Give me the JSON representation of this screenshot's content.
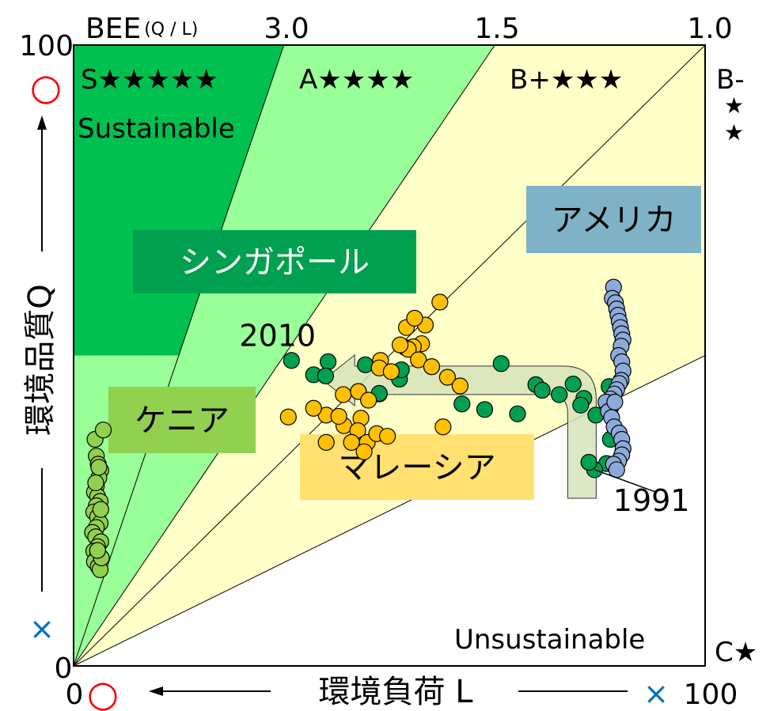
{
  "chart_data": {
    "type": "scatter",
    "title": "",
    "x_axis": {
      "label": "環境負荷 L",
      "range": [
        0,
        100
      ],
      "min_label": "0",
      "max_label": "100",
      "min_symbol": "○",
      "max_symbol": "×"
    },
    "y_axis": {
      "label": "環境品質Q",
      "range": [
        0,
        100
      ],
      "min_label": "0",
      "max_label": "100",
      "min_symbol": "×",
      "max_symbol": "○"
    },
    "bee_axis": {
      "label": "BEE",
      "label_suffix": "(Q / L)",
      "ticks": [
        "3.0",
        "1.5",
        "1.0"
      ]
    },
    "zones": [
      {
        "label": "S★★★★★",
        "note": "Sustainable",
        "color": "#00c050"
      },
      {
        "label": "A★★★★",
        "color": "#99ff99"
      },
      {
        "label": "B+★★★",
        "color": "#ffffc8"
      },
      {
        "label": "B-",
        "stars": [
          "★",
          "★"
        ],
        "color": "#ffffc8"
      },
      {
        "label": "C★",
        "note": "Unsustainable",
        "color": "#ffffff"
      }
    ],
    "series": [
      {
        "name": "シンガポール",
        "color": "#00a050",
        "label_bg": "#00a050",
        "points": [
          [
            84.4,
            32.6
          ],
          [
            82.5,
            31.6
          ],
          [
            81.6,
            32.8
          ],
          [
            85.0,
            36.5
          ],
          [
            85.0,
            41.5
          ],
          [
            84.8,
            45.0
          ],
          [
            79.1,
            45.4
          ],
          [
            80.8,
            43.1
          ],
          [
            84.8,
            41.5
          ],
          [
            82.7,
            40.4
          ],
          [
            80.3,
            42.0
          ],
          [
            76.9,
            43.7
          ],
          [
            73.2,
            45.3
          ],
          [
            74.2,
            44.4
          ],
          [
            70.3,
            40.6
          ],
          [
            65.1,
            41.3
          ],
          [
            61.5,
            42.2
          ],
          [
            52.5,
            51.3
          ],
          [
            46.2,
            48.5
          ],
          [
            51.6,
            46.2
          ],
          [
            48.4,
            43.8
          ],
          [
            45.1,
            44.2
          ],
          [
            40.3,
            49.0
          ],
          [
            34.5,
            49.2
          ],
          [
            51.9,
            47.7
          ],
          [
            56.7,
            48.2
          ],
          [
            48.4,
            43.9
          ],
          [
            38.0,
            46.9
          ],
          [
            39.9,
            46.7
          ],
          [
            67.7,
            48.7
          ]
        ]
      },
      {
        "name": "マレーシア",
        "color": "#ffc000",
        "label_bg": "#ffe070",
        "points": [
          [
            58.0,
            58.6
          ],
          [
            55.1,
            51.9
          ],
          [
            55.7,
            54.9
          ],
          [
            52.7,
            54.5
          ],
          [
            54.0,
            56.0
          ],
          [
            53.8,
            51.4
          ],
          [
            53.0,
            51.0
          ],
          [
            54.6,
            49.3
          ],
          [
            56.7,
            48.2
          ],
          [
            59.2,
            46.5
          ],
          [
            51.7,
            51.7
          ],
          [
            48.6,
            49.2
          ],
          [
            48.4,
            48.0
          ],
          [
            50.3,
            47.4
          ],
          [
            42.7,
            43.7
          ],
          [
            45.1,
            44.2
          ],
          [
            46.7,
            42.8
          ],
          [
            45.5,
            39.9
          ],
          [
            40.0,
            40.4
          ],
          [
            40.0,
            36.0
          ],
          [
            42.8,
            38.7
          ],
          [
            45.0,
            37.9
          ],
          [
            46.0,
            35.7
          ],
          [
            46.5,
            36.0
          ],
          [
            48.0,
            37.4
          ],
          [
            49.7,
            37.0
          ],
          [
            58.5,
            38.5
          ],
          [
            46.0,
            34.5
          ],
          [
            44.0,
            36.0
          ],
          [
            61.2,
            45.1
          ],
          [
            42.0,
            40.2
          ],
          [
            34.0,
            40.1
          ],
          [
            38.0,
            41.5
          ]
        ]
      },
      {
        "name": "アメリカ",
        "color": "#8eaadb",
        "label_bg": "#7fb2c6",
        "points": [
          [
            85.5,
            61.0
          ],
          [
            85.3,
            59.2
          ],
          [
            85.8,
            58.5
          ],
          [
            86.0,
            57.5
          ],
          [
            86.2,
            56.5
          ],
          [
            86.4,
            55.5
          ],
          [
            86.6,
            54.5
          ],
          [
            86.8,
            53.5
          ],
          [
            87.0,
            52.5
          ],
          [
            86.7,
            51.5
          ],
          [
            86.3,
            50.0
          ],
          [
            86.8,
            49.0
          ],
          [
            87.0,
            47.5
          ],
          [
            86.7,
            46.0
          ],
          [
            86.4,
            45.5
          ],
          [
            86.0,
            44.5
          ],
          [
            85.6,
            43.8
          ],
          [
            85.0,
            43.0
          ],
          [
            84.3,
            42.5
          ],
          [
            84.7,
            41.0
          ],
          [
            85.2,
            40.0
          ],
          [
            85.6,
            38.5
          ],
          [
            86.4,
            37.5
          ],
          [
            86.8,
            36.5
          ],
          [
            87.0,
            35.0
          ],
          [
            86.8,
            34.0
          ],
          [
            86.3,
            33.0
          ],
          [
            85.5,
            32.5
          ],
          [
            86.0,
            31.6
          ],
          [
            85.7,
            42.5
          ]
        ]
      },
      {
        "name": "ケニア",
        "color": "#92d050",
        "label_bg": "#92d050",
        "points": [
          [
            3.4,
            36.5
          ],
          [
            3.6,
            33.8
          ],
          [
            3.9,
            32.5
          ],
          [
            4.3,
            31.5
          ],
          [
            4.0,
            30.3
          ],
          [
            3.6,
            29.0
          ],
          [
            3.3,
            28.0
          ],
          [
            3.8,
            27.3
          ],
          [
            4.2,
            26.5
          ],
          [
            3.6,
            25.8
          ],
          [
            3.2,
            24.8
          ],
          [
            3.8,
            24.0
          ],
          [
            4.2,
            23.0
          ],
          [
            3.6,
            22.3
          ],
          [
            3.0,
            21.5
          ],
          [
            3.5,
            20.8
          ],
          [
            4.3,
            20.0
          ],
          [
            3.8,
            19.2
          ],
          [
            3.2,
            18.5
          ],
          [
            3.8,
            17.8
          ],
          [
            3.3,
            16.8
          ],
          [
            3.9,
            16.0
          ],
          [
            4.2,
            15.5
          ],
          [
            4.4,
            17.4
          ],
          [
            3.8,
            18.6
          ],
          [
            4.3,
            25.2
          ],
          [
            3.5,
            29.5
          ],
          [
            4.0,
            32.0
          ],
          [
            4.7,
            38.0
          ]
        ]
      }
    ],
    "annotations": [
      {
        "text": "2010",
        "x": 32.3,
        "y": 51.5
      },
      {
        "text": "1991",
        "x": 91.5,
        "y": 25.0
      }
    ],
    "arrow": {
      "from": [
        80.5,
        27.0
      ],
      "via": [
        80.5,
        46.0
      ],
      "to": [
        39.5,
        46.0
      ],
      "color": "#d6e4b8"
    }
  }
}
